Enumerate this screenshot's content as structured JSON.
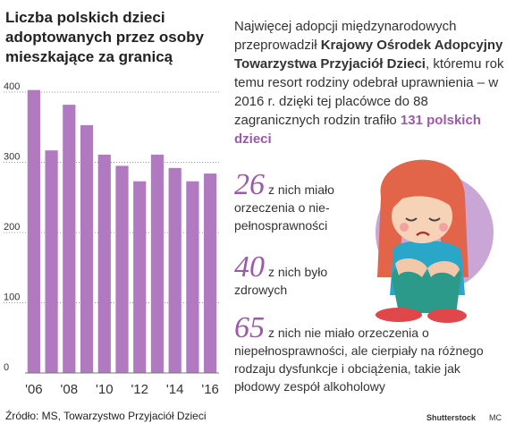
{
  "chart_data": {
    "type": "bar",
    "title": "Liczba polskich dzieci adoptowanych przez osoby mieszkające za granicą",
    "categories": [
      "2006",
      "2007",
      "2008",
      "2009",
      "2010",
      "2011",
      "2012",
      "2013",
      "2014",
      "2015",
      "2016"
    ],
    "x_tick_labels": [
      "'06",
      "'08",
      "'10",
      "'12",
      "'14",
      "'16"
    ],
    "values": [
      403,
      317,
      382,
      353,
      311,
      295,
      273,
      311,
      292,
      273,
      284
    ],
    "y_ticks": [
      0,
      100,
      200,
      300,
      400
    ],
    "ylim": [
      0,
      420
    ],
    "grid": true,
    "bar_color": "#b079c0"
  },
  "source": "Źródło: MS, Towarzystwo Przyjaciół Dzieci",
  "intro": {
    "part1": "Najwięcej adopcji międzynarodowych przeprowadził ",
    "org": "Krajowy Ośrodek Adopcyjny Towarzystwa Przyjaciół Dzieci",
    "part2": ", któremu rok temu resort rodziny odebrał uprawnienia – w 2016 r. dzięki tej placówce do 88 zagranicznych rodzin trafiło ",
    "highlight": "131 polskich dzieci"
  },
  "stats": [
    {
      "number": "26",
      "text": "z nich miało orzeczenia o nie-pełnosprawności"
    },
    {
      "number": "40",
      "text": "z nich było zdrowych"
    },
    {
      "number": "65",
      "text": "z nich nie miało orzeczenia o niepełnosprawności, ale cierpiały na różnego rodzaju dysfunkcje i obciążenia, takie jak płodowy zespół alkoholowy"
    }
  ],
  "credits": {
    "photo": "Shutterstock",
    "author": "MC"
  },
  "colors": {
    "accent": "#9b5aa8",
    "circle": "#c9a6d6",
    "hair": "#e2654a",
    "shirt": "#2aa6c9",
    "pants": "#2b9a8a",
    "shoes": "#e0474a"
  }
}
